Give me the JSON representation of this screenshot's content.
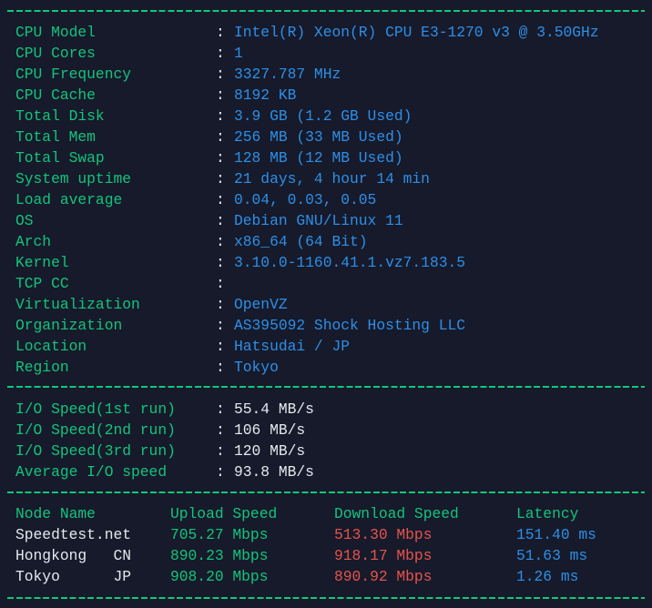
{
  "colors": {
    "background": "#161a2b",
    "label": "#13c47b",
    "value": "#2e8fe6",
    "white": "#e6e8ec",
    "download": "#e5534b"
  },
  "system_info": [
    {
      "label": "CPU Model",
      "value": "Intel(R) Xeon(R) CPU E3-1270 v3 @ 3.50GHz"
    },
    {
      "label": "CPU Cores",
      "value": "1"
    },
    {
      "label": "CPU Frequency",
      "value": "3327.787 MHz"
    },
    {
      "label": "CPU Cache",
      "value": "8192 KB"
    },
    {
      "label": "Total Disk",
      "value": "3.9 GB (1.2 GB Used)"
    },
    {
      "label": "Total Mem",
      "value": "256 MB (33 MB Used)"
    },
    {
      "label": "Total Swap",
      "value": "128 MB (12 MB Used)"
    },
    {
      "label": "System uptime",
      "value": "21 days, 4 hour 14 min"
    },
    {
      "label": "Load average",
      "value": "0.04, 0.03, 0.05"
    },
    {
      "label": "OS",
      "value": "Debian GNU/Linux 11"
    },
    {
      "label": "Arch",
      "value": "x86_64 (64 Bit)"
    },
    {
      "label": "Kernel",
      "value": "3.10.0-1160.41.1.vz7.183.5"
    },
    {
      "label": "TCP CC",
      "value": ""
    },
    {
      "label": "Virtualization",
      "value": "OpenVZ"
    },
    {
      "label": "Organization",
      "value": "AS395092 Shock Hosting LLC"
    },
    {
      "label": "Location",
      "value": "Hatsudai / JP"
    },
    {
      "label": "Region",
      "value": "Tokyo"
    }
  ],
  "io": [
    {
      "label": "I/O Speed(1st run)",
      "value": "55.4 MB/s"
    },
    {
      "label": "I/O Speed(2nd run)",
      "value": "106 MB/s"
    },
    {
      "label": "I/O Speed(3rd run)",
      "value": "120 MB/s"
    },
    {
      "label": "Average I/O speed",
      "value": "93.8 MB/s"
    }
  ],
  "speed": {
    "headers": [
      "Node Name",
      "Upload Speed",
      "Download Speed",
      "Latency"
    ],
    "rows": [
      {
        "node": "Speedtest.net",
        "upload": "705.27 Mbps",
        "download": "513.30 Mbps",
        "latency": "151.40 ms"
      },
      {
        "node": "Hongkong   CN",
        "upload": "890.23 Mbps",
        "download": "918.17 Mbps",
        "latency": "51.63 ms"
      },
      {
        "node": "Tokyo      JP",
        "upload": "908.20 Mbps",
        "download": "890.92 Mbps",
        "latency": "1.26 ms"
      }
    ]
  },
  "colon": ":"
}
